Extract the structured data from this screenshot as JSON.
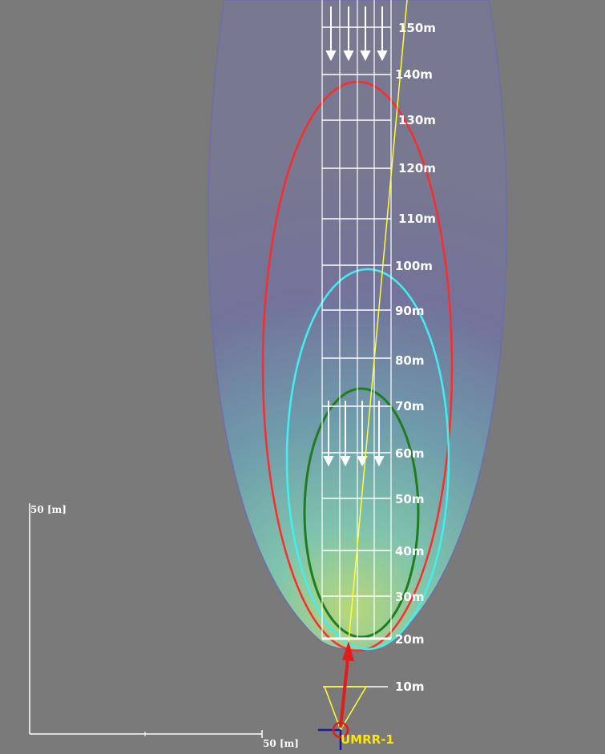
{
  "sensor": {
    "name": "UMRR-1"
  },
  "distance_labels": [
    "10m",
    "20m",
    "30m",
    "40m",
    "50m",
    "60m",
    "70m",
    "80m",
    "90m",
    "100m",
    "110m",
    "120m",
    "130m",
    "140m",
    "150m"
  ],
  "scale_bar": {
    "vertical_label": "50 [m]",
    "horizontal_label": "50 [m]"
  },
  "colors": {
    "background": "#7a7a7a",
    "outer_envelope": "#6e6eaa",
    "zone_red": "#ff2a2a",
    "zone_cyan": "#3ff0f0",
    "zone_green": "#1f7d1f",
    "heading_line": "#ffff33",
    "sensor_marker": "#e31b1b",
    "lane_lines": "#ffffff"
  },
  "zones": [
    {
      "name": "outer",
      "max_range_m": 160
    },
    {
      "name": "red",
      "max_range_m": 139
    },
    {
      "name": "cyan",
      "max_range_m": 100
    },
    {
      "name": "green",
      "max_range_m": 74
    }
  ]
}
